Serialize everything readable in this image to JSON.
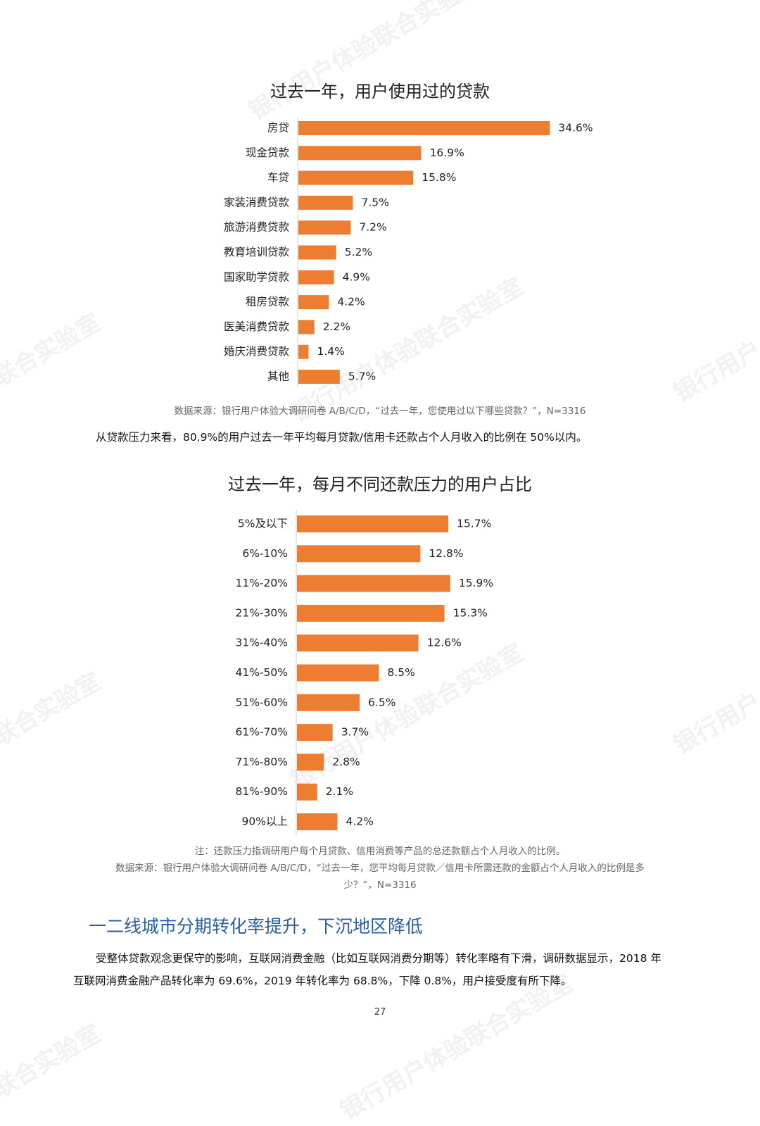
{
  "watermark": {
    "text_a": "银行用户体验联合实验室",
    "text_b": "联合实验室",
    "text_c": "银行用户"
  },
  "chart1": {
    "title": "过去一年，用户使用过的贷款",
    "source": "数据来源：银行用户体验大调研问卷 A/B/C/D，“过去一年，您使用过以下哪些贷款？”，N=3316"
  },
  "paragraph1": "从贷款压力来看，80.9%的用户过去一年平均每月贷款/信用卡还款占个人月收入的比例在 50%以内。",
  "chart2": {
    "title": "过去一年，每月不同还款压力的用户占比",
    "note": "注：还款压力指调研用户每个月贷款、信用消费等产品的总还款额占个人月收入的比例。",
    "source_line1": "数据来源：银行用户体验大调研问卷 A/B/C/D，“过去一年，您平均每月贷款／信用卡所需还款的金额占个人月收入的比例是多",
    "source_line2": "少？”，N=3316"
  },
  "section_heading": "一二线城市分期转化率提升，下沉地区降低",
  "paragraph2": {
    "line1": "受整体贷款观念更保守的影响，互联网消费金融（比如互联网消费分期等）转化率略有下滑，调研数据显示，2018 年",
    "line2": "互联网消费金融产品转化率为 69.6%，2019 年转化率为 68.8%，下降 0.8%，用户接受度有所下降。"
  },
  "page_number": "27",
  "colors": {
    "bar": "#ed7d31",
    "axis": "#cccccc",
    "heading": "#2a5f9e"
  },
  "chart_data": [
    {
      "type": "bar",
      "orientation": "horizontal",
      "title": "过去一年，用户使用过的贷款",
      "categories": [
        "房贷",
        "现金贷款",
        "车贷",
        "家装消费贷款",
        "旅游消费贷款",
        "教育培训贷款",
        "国家助学贷款",
        "租房贷款",
        "医美消费贷款",
        "婚庆消费贷款",
        "其他"
      ],
      "values": [
        34.6,
        16.9,
        15.8,
        7.5,
        7.2,
        5.2,
        4.9,
        4.2,
        2.2,
        1.4,
        5.7
      ],
      "labels": [
        "34.6%",
        "16.9%",
        "15.8%",
        "7.5%",
        "7.2%",
        "5.2%",
        "4.9%",
        "4.2%",
        "2.2%",
        "1.4%",
        "5.7%"
      ],
      "xlim": [
        0,
        40
      ],
      "unit": "%",
      "grid": false,
      "legend": false
    },
    {
      "type": "bar",
      "orientation": "horizontal",
      "title": "过去一年，每月不同还款压力的用户占比",
      "categories": [
        "5%及以下",
        "6%-10%",
        "11%-20%",
        "21%-30%",
        "31%-40%",
        "41%-50%",
        "51%-60%",
        "61%-70%",
        "71%-80%",
        "81%-90%",
        "90%以上"
      ],
      "values": [
        15.7,
        12.8,
        15.9,
        15.3,
        12.6,
        8.5,
        6.5,
        3.7,
        2.8,
        2.1,
        4.2
      ],
      "labels": [
        "15.7%",
        "12.8%",
        "15.9%",
        "15.3%",
        "12.6%",
        "8.5%",
        "6.5%",
        "3.7%",
        "2.8%",
        "2.1%",
        "4.2%"
      ],
      "xlim": [
        0,
        20
      ],
      "unit": "%",
      "grid": false,
      "legend": false
    }
  ]
}
